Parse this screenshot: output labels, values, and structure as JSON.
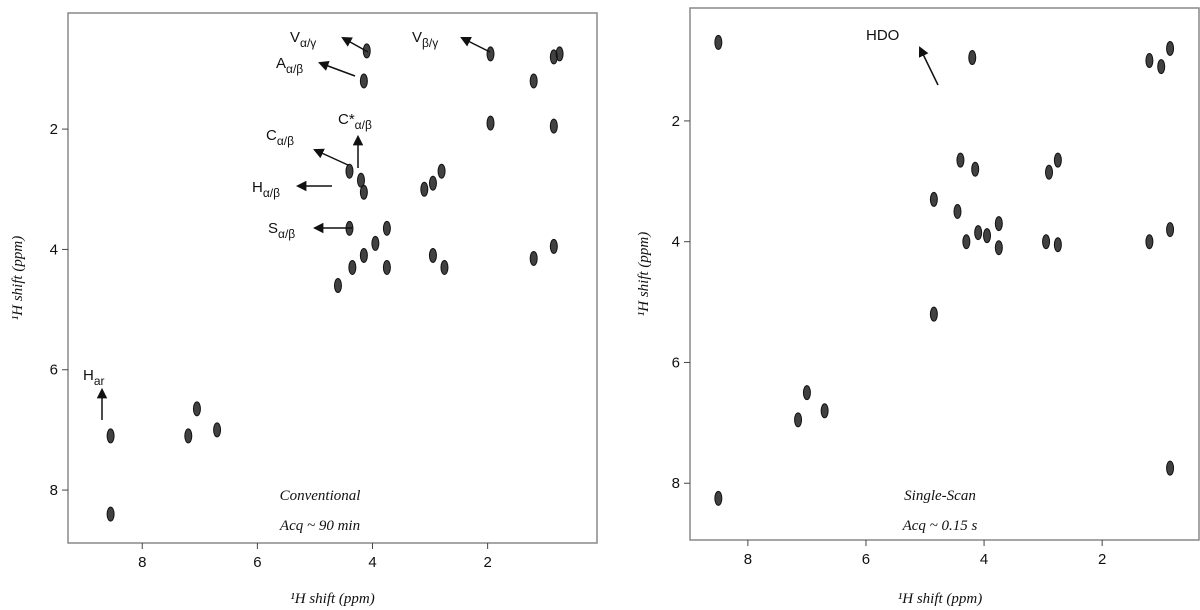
{
  "chart_data": [
    {
      "type": "scatter",
      "color": "#111111",
      "xlabel": "¹H shift (ppm)",
      "ylabel": "¹H shift (ppm)",
      "xlim": [
        9.29,
        0.1
      ],
      "ylim": [
        0.07,
        8.88
      ],
      "xticks": [
        8,
        6,
        4,
        2
      ],
      "yticks": [
        2,
        4,
        6,
        8
      ],
      "x": [
        0.85,
        0.75,
        1.2,
        1.95,
        0.85,
        1.95,
        4.15,
        4.1,
        4.4,
        4.2,
        2.8,
        2.95,
        3.1,
        4.15,
        4.4,
        3.75,
        4.15,
        3.95,
        4.35,
        3.75,
        2.95,
        2.75,
        1.2,
        0.85,
        4.6,
        7.2,
        7.05,
        6.7,
        8.55,
        8.55
      ],
      "values": [
        0.8,
        0.75,
        1.2,
        0.75,
        1.95,
        1.9,
        1.2,
        0.7,
        2.7,
        2.85,
        2.7,
        2.9,
        3.0,
        3.05,
        3.65,
        3.65,
        4.1,
        3.9,
        4.3,
        4.3,
        4.1,
        4.3,
        4.15,
        3.95,
        4.6,
        7.1,
        6.65,
        7.0,
        7.1,
        8.4
      ],
      "annotations": [
        {
          "text": "V",
          "sub": "α/γ"
        },
        {
          "text": "A",
          "sub": "α/β"
        },
        {
          "text": "V",
          "sub": "β/γ"
        },
        {
          "text": "C",
          "sub": "α/β"
        },
        {
          "text": "C*",
          "sub": "α/β"
        },
        {
          "text": "H",
          "sub": "α/β"
        },
        {
          "text": "S",
          "sub": "α/β"
        },
        {
          "text": "H",
          "sub": "ar"
        }
      ],
      "title": "Conventional",
      "subtitle": "Acq ~ 90 min"
    },
    {
      "type": "scatter",
      "color": "#111111",
      "xlabel": "¹H shift (ppm)",
      "ylabel": "¹H shift (ppm)",
      "xlim": [
        8.98,
        0.36
      ],
      "ylim": [
        0.13,
        8.94
      ],
      "xticks": [
        8,
        6,
        4,
        2
      ],
      "yticks": [
        2,
        4,
        6,
        8
      ],
      "x": [
        1.2,
        0.85,
        1.0,
        4.2,
        4.85,
        4.85,
        4.4,
        4.15,
        2.75,
        2.9,
        4.45,
        4.3,
        3.75,
        3.75,
        4.1,
        3.95,
        2.95,
        2.75,
        1.2,
        0.85,
        7.15,
        7.0,
        6.7,
        8.5,
        0.85,
        8.5
      ],
      "values": [
        1.0,
        0.8,
        1.1,
        0.95,
        3.3,
        5.2,
        2.65,
        2.8,
        2.65,
        2.85,
        3.5,
        4.0,
        3.7,
        4.1,
        3.85,
        3.9,
        4.0,
        4.05,
        4.0,
        3.8,
        6.95,
        6.5,
        6.8,
        8.25,
        7.75,
        0.7
      ],
      "annotations": [
        {
          "text": "HDO"
        }
      ],
      "title": "Single-Scan",
      "subtitle": "Acq ~ 0.15 s"
    }
  ]
}
